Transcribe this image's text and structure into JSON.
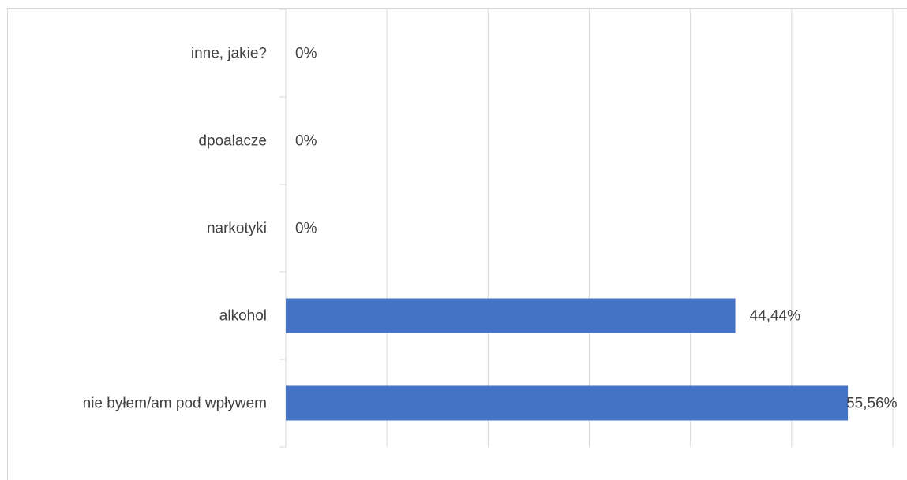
{
  "chart_data": {
    "type": "bar",
    "orientation": "horizontal",
    "categories": [
      "inne, jakie?",
      "dpoalacze",
      "narkotyki",
      "alkohol",
      "nie byłem/am pod wpływem"
    ],
    "values": [
      0,
      0,
      0,
      44.44,
      55.56
    ],
    "data_labels": [
      "0%",
      "0%",
      "0%",
      "44,44%",
      "55,56%"
    ],
    "xlim": [
      0,
      60
    ],
    "x_gridlines": [
      0,
      10,
      20,
      30,
      40,
      50,
      60
    ],
    "grid": true,
    "legend": "none",
    "bar_color": "#4472c4",
    "title": "",
    "xlabel": "",
    "ylabel": ""
  }
}
